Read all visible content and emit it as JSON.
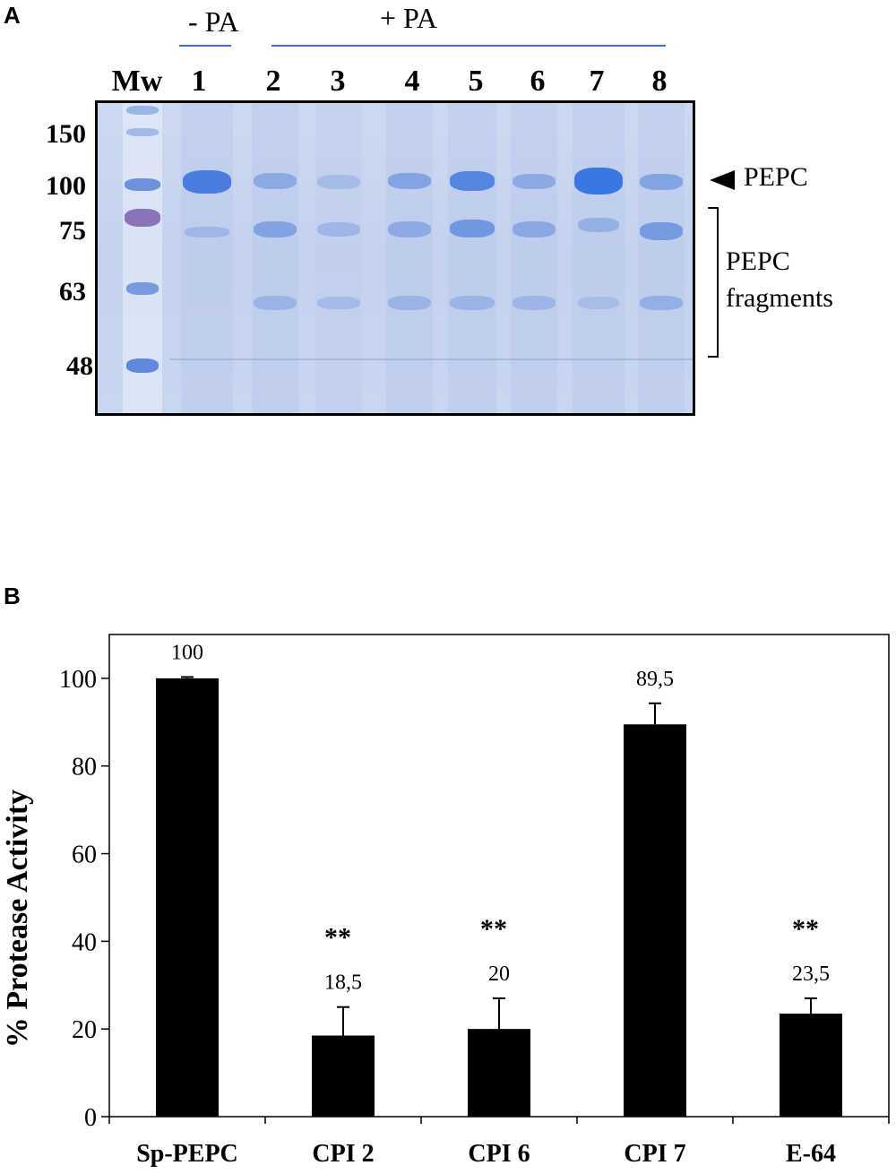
{
  "panel_a": {
    "label": "A",
    "groups": {
      "minus_pa": "- PA",
      "plus_pa": "+ PA"
    },
    "marker_label": "Mw",
    "lanes": [
      "1",
      "2",
      "3",
      "4",
      "5",
      "6",
      "7",
      "8"
    ],
    "mw_markers": [
      "150",
      "100",
      "75",
      "63",
      "48"
    ],
    "annotations": {
      "pepc": "PEPC",
      "fragments_line1": "PEPC",
      "fragments_line2": "fragments"
    },
    "colors": {
      "band_blue": "#4f7fd6",
      "gel_bg": "#c8d5ef",
      "marker_purple": "#7a6cb0"
    }
  },
  "panel_b": {
    "label": "B"
  },
  "chart_data": {
    "type": "bar",
    "categories": [
      "Sp-PEPC",
      "CPI 2",
      "CPI 6",
      "CPI 7",
      "E-64"
    ],
    "values": [
      100,
      18.5,
      20,
      89.5,
      23.5
    ],
    "errors": [
      0.3,
      6.5,
      7,
      4.8,
      3.5
    ],
    "value_labels": [
      "100",
      "18,5",
      "20",
      "89,5",
      "23,5"
    ],
    "significance": [
      "",
      "**",
      "**",
      "",
      "**"
    ],
    "ylabel": "% Protease Activity",
    "xlabel": "",
    "title": "",
    "ylim": [
      0,
      110
    ],
    "yticks": [
      0,
      20,
      40,
      60,
      80,
      100
    ],
    "grid": false,
    "bar_color": "#000000"
  }
}
